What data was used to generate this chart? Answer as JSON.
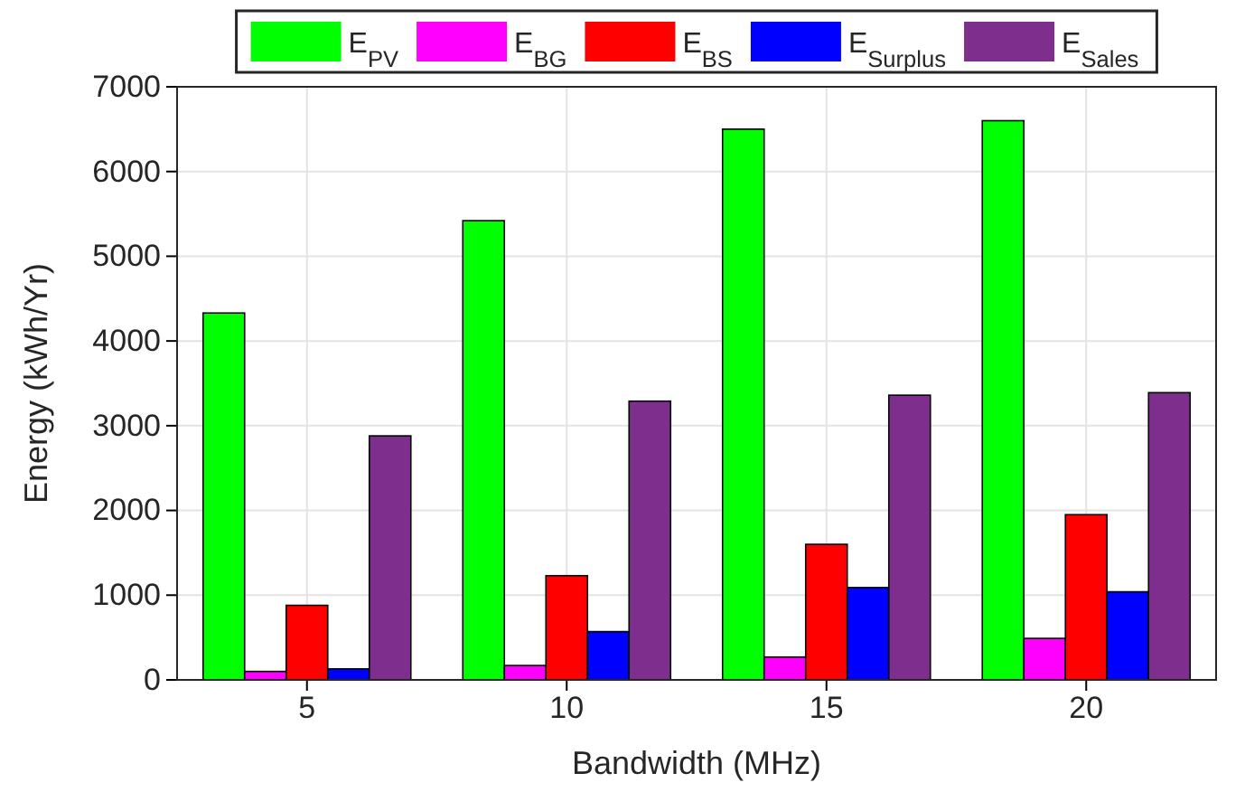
{
  "chart_data": {
    "type": "bar",
    "xlabel": "Bandwidth (MHz)",
    "ylabel": "Energy (kWh/Yr)",
    "categories": [
      "5",
      "10",
      "15",
      "20"
    ],
    "series": [
      {
        "name": "E$_{PV}$",
        "color": "#00ff00",
        "values": [
          4330,
          5420,
          6500,
          6600
        ]
      },
      {
        "name": "E$_{BG}$",
        "color": "#ff00ff",
        "values": [
          100,
          170,
          270,
          490
        ]
      },
      {
        "name": "E$_{BS}$",
        "color": "#ff0000",
        "values": [
          880,
          1230,
          1600,
          1950
        ]
      },
      {
        "name": "E$_{Surplus}$",
        "color": "#0000ff",
        "values": [
          130,
          570,
          1090,
          1040
        ]
      },
      {
        "name": "E$_{Sales}$",
        "color": "#7e2f8e",
        "values": [
          2880,
          3290,
          3360,
          3390
        ]
      }
    ],
    "ylim": [
      0,
      7000
    ],
    "yticks": [
      0,
      1000,
      2000,
      3000,
      4000,
      5000,
      6000,
      7000
    ],
    "grid": true,
    "legend": "top"
  }
}
